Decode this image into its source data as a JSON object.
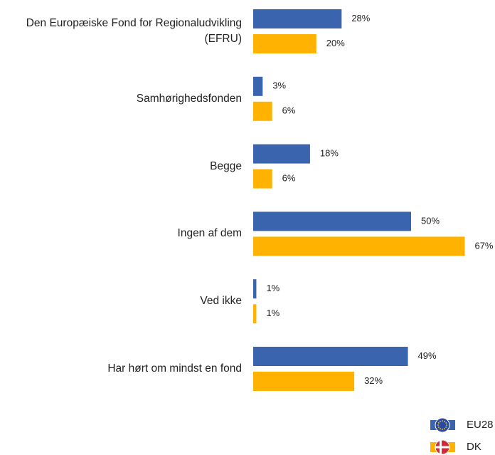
{
  "chart_data": {
    "type": "bar",
    "orientation": "horizontal",
    "categories": [
      "Den Europæiske Fond for Regionaludvikling (EFRU)",
      "Samhørighedsfonden",
      "Begge",
      "Ingen af dem",
      "Ved ikke",
      "Har hørt om mindst en fond"
    ],
    "series": [
      {
        "name": "EU28",
        "color": "#3a64ad",
        "values": [
          28,
          3,
          18,
          50,
          1,
          49
        ],
        "value_labels": [
          "28%",
          "3%",
          "18%",
          "50%",
          "1%",
          "49%"
        ]
      },
      {
        "name": "DK",
        "color": "#ffb300",
        "values": [
          20,
          6,
          6,
          67,
          1,
          32
        ],
        "value_labels": [
          "20%",
          "6%",
          "6%",
          "67%",
          "1%",
          "32%"
        ]
      }
    ],
    "legend": "bottom-right"
  }
}
